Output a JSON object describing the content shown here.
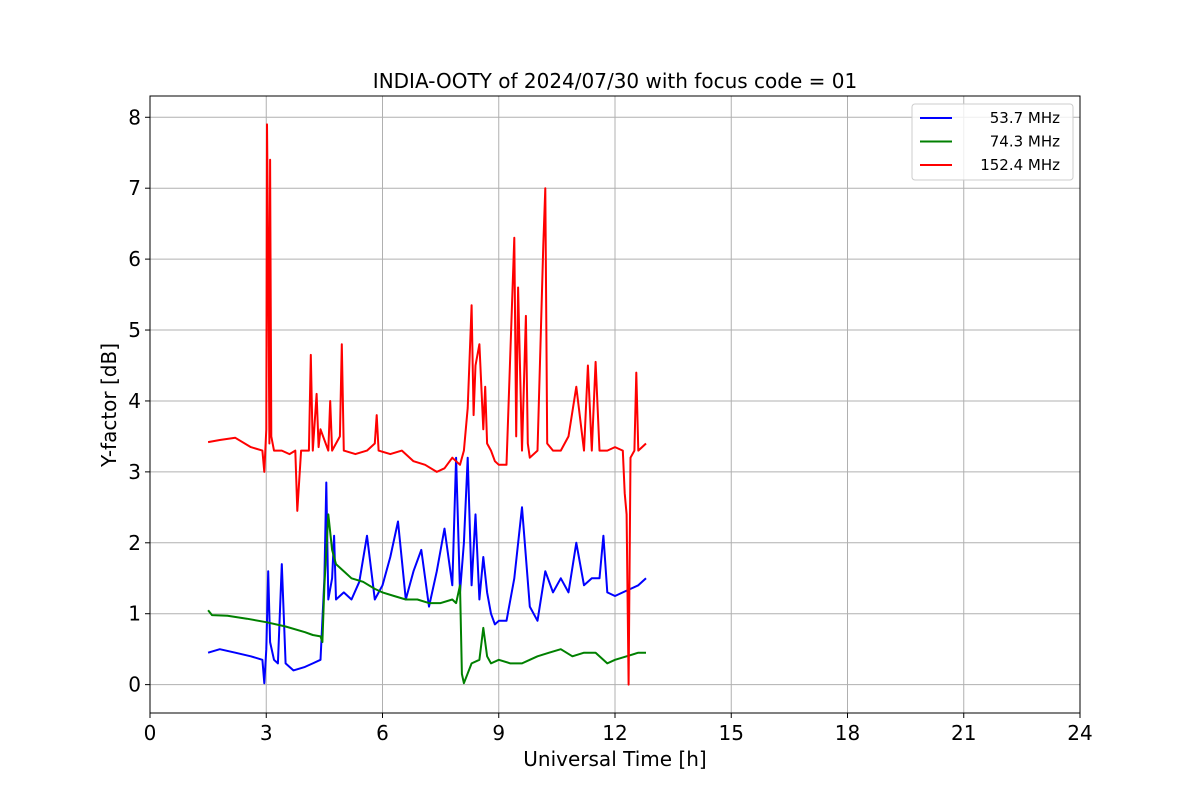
{
  "chart_data": {
    "type": "line",
    "title": "INDIA-OOTY of 2024/07/30 with focus code = 01",
    "xlabel": "Universal Time [h]",
    "ylabel": "Y-factor [dB]",
    "xlim": [
      0,
      24
    ],
    "ylim": [
      -0.4,
      8.3
    ],
    "xticks": [
      0,
      3,
      6,
      9,
      12,
      15,
      18,
      21,
      24
    ],
    "yticks": [
      0,
      1,
      2,
      3,
      4,
      5,
      6,
      7,
      8
    ],
    "grid": true,
    "legend_position": "top-right",
    "series": [
      {
        "name": "53.7 MHz",
        "color": "#0000ff",
        "x": [
          1.5,
          1.8,
          2.2,
          2.6,
          2.9,
          2.95,
          3.0,
          3.05,
          3.1,
          3.2,
          3.3,
          3.4,
          3.5,
          3.7,
          4.0,
          4.2,
          4.4,
          4.5,
          4.55,
          4.6,
          4.7,
          4.75,
          4.8,
          5.0,
          5.2,
          5.4,
          5.6,
          5.8,
          6.0,
          6.2,
          6.4,
          6.6,
          6.8,
          7.0,
          7.2,
          7.4,
          7.6,
          7.8,
          7.9,
          8.0,
          8.1,
          8.2,
          8.3,
          8.4,
          8.5,
          8.6,
          8.7,
          8.8,
          8.9,
          9.0,
          9.2,
          9.4,
          9.6,
          9.8,
          10.0,
          10.2,
          10.4,
          10.6,
          10.8,
          11.0,
          11.2,
          11.4,
          11.6,
          11.7,
          11.8,
          12.0,
          12.2,
          12.4,
          12.6,
          12.8
        ],
        "y": [
          0.45,
          0.5,
          0.45,
          0.4,
          0.35,
          0.02,
          0.5,
          1.6,
          0.6,
          0.35,
          0.3,
          1.7,
          0.3,
          0.2,
          0.25,
          0.3,
          0.35,
          1.5,
          2.85,
          1.2,
          1.5,
          2.1,
          1.2,
          1.3,
          1.2,
          1.45,
          2.1,
          1.2,
          1.4,
          1.8,
          2.3,
          1.2,
          1.6,
          1.9,
          1.1,
          1.6,
          2.2,
          1.4,
          3.2,
          1.3,
          2.0,
          3.2,
          1.4,
          2.4,
          1.2,
          1.8,
          1.3,
          1.0,
          0.85,
          0.9,
          0.9,
          1.5,
          2.5,
          1.1,
          0.9,
          1.6,
          1.3,
          1.5,
          1.3,
          2.0,
          1.4,
          1.5,
          1.5,
          2.1,
          1.3,
          1.25,
          1.3,
          1.35,
          1.4,
          1.5
        ]
      },
      {
        "name": "74.3 MHz",
        "color": "#008000",
        "x": [
          1.5,
          1.6,
          2.0,
          2.5,
          3.0,
          3.5,
          4.0,
          4.2,
          4.4,
          4.45,
          4.5,
          4.6,
          4.7,
          4.8,
          5.0,
          5.2,
          5.5,
          5.8,
          6.0,
          6.3,
          6.6,
          6.9,
          7.2,
          7.5,
          7.8,
          7.9,
          8.0,
          8.05,
          8.1,
          8.3,
          8.5,
          8.6,
          8.7,
          8.8,
          9.0,
          9.3,
          9.6,
          9.8,
          10.0,
          10.3,
          10.6,
          10.9,
          11.2,
          11.5,
          11.8,
          12.0,
          12.3,
          12.6,
          12.8
        ],
        "y": [
          1.05,
          0.98,
          0.97,
          0.93,
          0.88,
          0.82,
          0.74,
          0.7,
          0.68,
          0.6,
          1.4,
          2.4,
          1.9,
          1.7,
          1.6,
          1.5,
          1.45,
          1.35,
          1.3,
          1.25,
          1.2,
          1.2,
          1.15,
          1.15,
          1.2,
          1.15,
          1.4,
          0.15,
          0.02,
          0.3,
          0.35,
          0.8,
          0.4,
          0.3,
          0.35,
          0.3,
          0.3,
          0.35,
          0.4,
          0.45,
          0.5,
          0.4,
          0.45,
          0.45,
          0.3,
          0.35,
          0.4,
          0.45,
          0.45
        ]
      },
      {
        "name": "152.4 MHz",
        "color": "#ff0000",
        "x": [
          1.5,
          1.8,
          2.2,
          2.6,
          2.9,
          2.95,
          3.0,
          3.02,
          3.05,
          3.08,
          3.1,
          3.13,
          3.2,
          3.4,
          3.6,
          3.75,
          3.8,
          3.9,
          4.1,
          4.15,
          4.2,
          4.3,
          4.35,
          4.4,
          4.6,
          4.65,
          4.7,
          4.9,
          4.95,
          5.0,
          5.3,
          5.6,
          5.8,
          5.85,
          5.9,
          6.2,
          6.5,
          6.8,
          7.1,
          7.4,
          7.6,
          7.8,
          8.0,
          8.1,
          8.2,
          8.3,
          8.35,
          8.4,
          8.5,
          8.6,
          8.65,
          8.7,
          8.8,
          8.9,
          9.0,
          9.2,
          9.4,
          9.45,
          9.5,
          9.6,
          9.7,
          9.75,
          9.8,
          10.0,
          10.15,
          10.2,
          10.25,
          10.4,
          10.6,
          10.8,
          11.0,
          11.2,
          11.3,
          11.4,
          11.5,
          11.6,
          11.8,
          12.0,
          12.2,
          12.25,
          12.3,
          12.35,
          12.4,
          12.5,
          12.55,
          12.6,
          12.7,
          12.8
        ],
        "y": [
          3.42,
          3.45,
          3.48,
          3.35,
          3.3,
          3.0,
          3.6,
          7.9,
          6.0,
          3.4,
          7.4,
          3.5,
          3.3,
          3.3,
          3.25,
          3.3,
          2.45,
          3.3,
          3.3,
          4.65,
          3.3,
          4.1,
          3.35,
          3.6,
          3.3,
          4.0,
          3.3,
          3.5,
          4.8,
          3.3,
          3.25,
          3.3,
          3.4,
          3.8,
          3.3,
          3.25,
          3.3,
          3.15,
          3.1,
          3.0,
          3.05,
          3.2,
          3.1,
          3.3,
          3.9,
          5.35,
          3.8,
          4.5,
          4.8,
          3.6,
          4.2,
          3.4,
          3.3,
          3.15,
          3.1,
          3.1,
          6.3,
          3.5,
          5.6,
          3.3,
          5.2,
          3.4,
          3.2,
          3.3,
          6.2,
          7.0,
          3.4,
          3.3,
          3.3,
          3.5,
          4.2,
          3.3,
          4.5,
          3.3,
          4.55,
          3.3,
          3.3,
          3.35,
          3.3,
          2.7,
          2.4,
          0.0,
          3.2,
          3.3,
          4.4,
          3.3,
          3.35,
          3.4
        ]
      }
    ]
  }
}
